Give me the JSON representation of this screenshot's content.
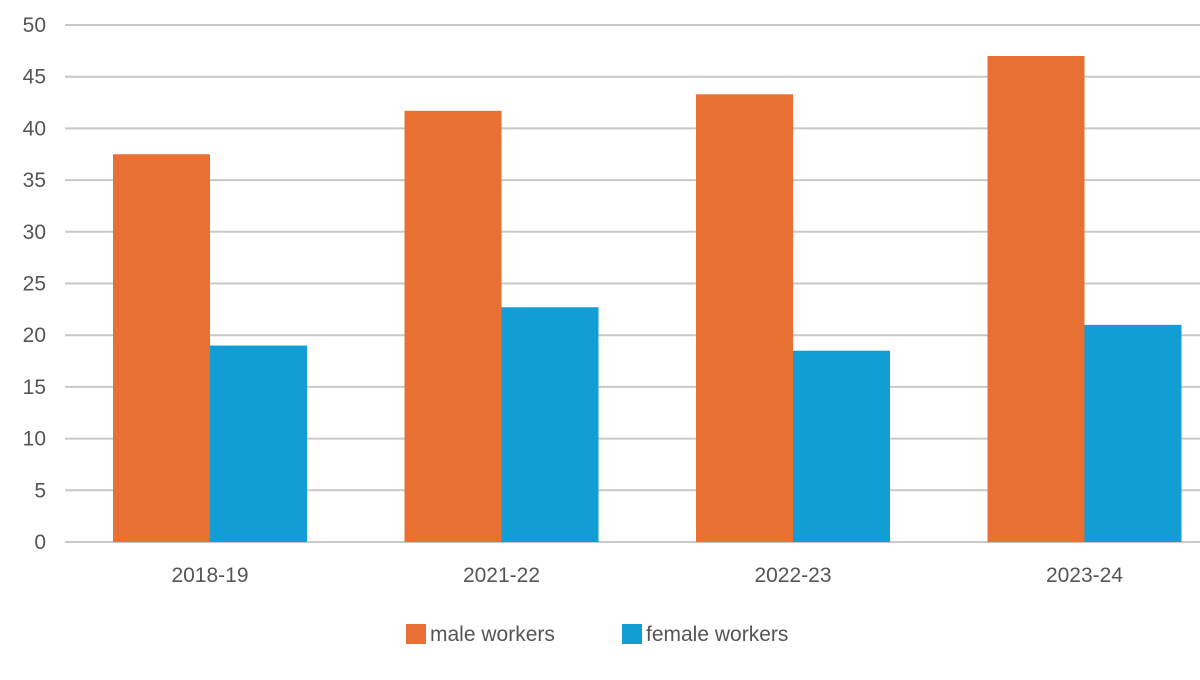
{
  "chart_data": {
    "type": "bar",
    "title": "",
    "xlabel": "",
    "ylabel": "",
    "categories": [
      "2018-19",
      "2021-22",
      "2022-23",
      "2023-24"
    ],
    "series": [
      {
        "name": "male workers",
        "values": [
          37.5,
          41.7,
          43.3,
          47.0
        ],
        "color": "#E87033"
      },
      {
        "name": "female workers",
        "values": [
          19.0,
          22.7,
          18.5,
          21.0
        ],
        "color": "#129DD5"
      }
    ],
    "ylim": [
      0,
      50
    ],
    "yticks": [
      0,
      5,
      10,
      15,
      20,
      25,
      30,
      35,
      40,
      45,
      50
    ],
    "grid": true,
    "grid_color": "#C8C8C8",
    "legend_position": "bottom"
  }
}
